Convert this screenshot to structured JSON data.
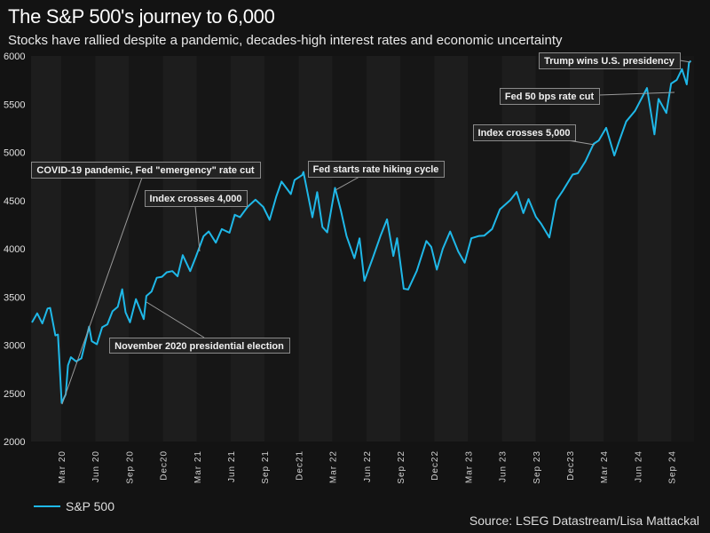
{
  "title": "The S&P 500's journey to 6,000",
  "subtitle": "Stocks have rallied despite a pandemic, decades-high interest rates and economic uncertainty",
  "source": "Source: LSEG Datastream/Lisa Mattackal",
  "colors": {
    "line": "#1fb8e8",
    "background": "#131313",
    "band_light": "#1d1d1d",
    "band_dark": "#161616",
    "annotation_border": "#8a8a8a"
  },
  "chart_data": {
    "type": "line",
    "title": "The S&P 500's journey to 6,000",
    "xlabel": "",
    "ylabel": "",
    "ylim": [
      2000,
      6000
    ],
    "yticks": [
      2000,
      2500,
      3000,
      3500,
      4000,
      4500,
      5000,
      5500,
      6000
    ],
    "xticks": [
      "Mar 20",
      "Jun 20",
      "Sep 20",
      "Dec20",
      "Mar 21",
      "Jun 21",
      "Sep 21",
      "Dec21",
      "Mar 22",
      "Jun 22",
      "Sep 22",
      "Dec22",
      "Mar 23",
      "Jun 23",
      "Sep 23",
      "Dec23",
      "Mar 24",
      "Jun 24",
      "Sep 24"
    ],
    "grid": false,
    "background_bands": "alternating by quarter",
    "legend": {
      "position": "bottom-left",
      "entries": [
        "S&P 500"
      ]
    },
    "series": [
      {
        "name": "S&P 500",
        "x": [
          "2020-01-03",
          "2020-01-17",
          "2020-01-31",
          "2020-02-14",
          "2020-02-21",
          "2020-03-06",
          "2020-03-13",
          "2020-03-23",
          "2020-04-03",
          "2020-04-09",
          "2020-04-17",
          "2020-05-01",
          "2020-05-15",
          "2020-06-05",
          "2020-06-12",
          "2020-06-26",
          "2020-07-10",
          "2020-07-24",
          "2020-08-07",
          "2020-08-21",
          "2020-09-02",
          "2020-09-11",
          "2020-09-23",
          "2020-10-09",
          "2020-10-30",
          "2020-11-06",
          "2020-11-20",
          "2020-12-04",
          "2020-12-18",
          "2020-12-31",
          "2021-01-15",
          "2021-01-29",
          "2021-02-12",
          "2021-03-04",
          "2021-03-19",
          "2021-04-09",
          "2021-04-23",
          "2021-05-12",
          "2021-05-28",
          "2021-06-18",
          "2021-07-02",
          "2021-07-16",
          "2021-08-06",
          "2021-08-27",
          "2021-09-17",
          "2021-10-04",
          "2021-10-22",
          "2021-11-05",
          "2021-11-30",
          "2021-12-10",
          "2021-12-31",
          "2022-01-03",
          "2022-01-27",
          "2022-02-09",
          "2022-02-23",
          "2022-03-08",
          "2022-03-29",
          "2022-04-14",
          "2022-04-29",
          "2022-05-20",
          "2022-06-03",
          "2022-06-16",
          "2022-07-08",
          "2022-07-29",
          "2022-08-16",
          "2022-09-02",
          "2022-09-12",
          "2022-09-30",
          "2022-10-12",
          "2022-11-04",
          "2022-11-30",
          "2022-12-13",
          "2022-12-28",
          "2023-01-13",
          "2023-02-02",
          "2023-02-24",
          "2023-03-13",
          "2023-03-31",
          "2023-04-21",
          "2023-05-05",
          "2023-05-26",
          "2023-06-16",
          "2023-07-14",
          "2023-07-31",
          "2023-08-18",
          "2023-09-01",
          "2023-09-21",
          "2023-10-05",
          "2023-10-27",
          "2023-11-15",
          "2023-12-01",
          "2023-12-29",
          "2024-01-12",
          "2024-02-01",
          "2024-02-23",
          "2024-03-08",
          "2024-03-28",
          "2024-04-19",
          "2024-05-03",
          "2024-05-21",
          "2024-06-14",
          "2024-07-16",
          "2024-08-05",
          "2024-08-16",
          "2024-09-06",
          "2024-09-19",
          "2024-10-04",
          "2024-10-18",
          "2024-10-31",
          "2024-11-06",
          "2024-11-11"
        ],
        "values": [
          3235,
          3330,
          3225,
          3380,
          3386,
          3100,
          3110,
          2400,
          2490,
          2790,
          2875,
          2830,
          2863,
          3193,
          3041,
          3009,
          3185,
          3216,
          3351,
          3397,
          3580,
          3340,
          3237,
          3477,
          3270,
          3509,
          3557,
          3699,
          3709,
          3756,
          3768,
          3714,
          3934,
          3768,
          3913,
          4129,
          4180,
          4063,
          4204,
          4166,
          4352,
          4327,
          4436,
          4509,
          4433,
          4300,
          4545,
          4697,
          4567,
          4712,
          4766,
          4796,
          4326,
          4587,
          4225,
          4170,
          4631,
          4392,
          4131,
          3901,
          4108,
          3666,
          3899,
          4130,
          4305,
          3924,
          4110,
          3585,
          3577,
          3770,
          4080,
          4019,
          3783,
          3999,
          4179,
          3970,
          3855,
          4109,
          4133,
          4136,
          4205,
          4409,
          4505,
          4589,
          4370,
          4515,
          4330,
          4258,
          4117,
          4502,
          4594,
          4770,
          4783,
          4906,
          5088,
          5123,
          5254,
          4967,
          5127,
          5321,
          5431,
          5667,
          5186,
          5554,
          5408,
          5713,
          5751,
          5864,
          5705,
          5929,
          5950
        ]
      }
    ],
    "annotations": [
      {
        "label": "COVID-19 pandemic, Fed \"emergency\" rate cut",
        "date": "2020-03-23"
      },
      {
        "label": "Index crosses 4,000",
        "date": "2021-04-01"
      },
      {
        "label": "November 2020 presidential election",
        "date": "2020-11-03"
      },
      {
        "label": "Fed starts rate hiking cycle",
        "date": "2022-03-16"
      },
      {
        "label": "Index crosses 5,000",
        "date": "2024-02-09"
      },
      {
        "label": "Fed 50 bps rate cut",
        "date": "2024-09-18"
      },
      {
        "label": "Trump wins U.S. presidency",
        "date": "2024-11-06"
      }
    ]
  }
}
